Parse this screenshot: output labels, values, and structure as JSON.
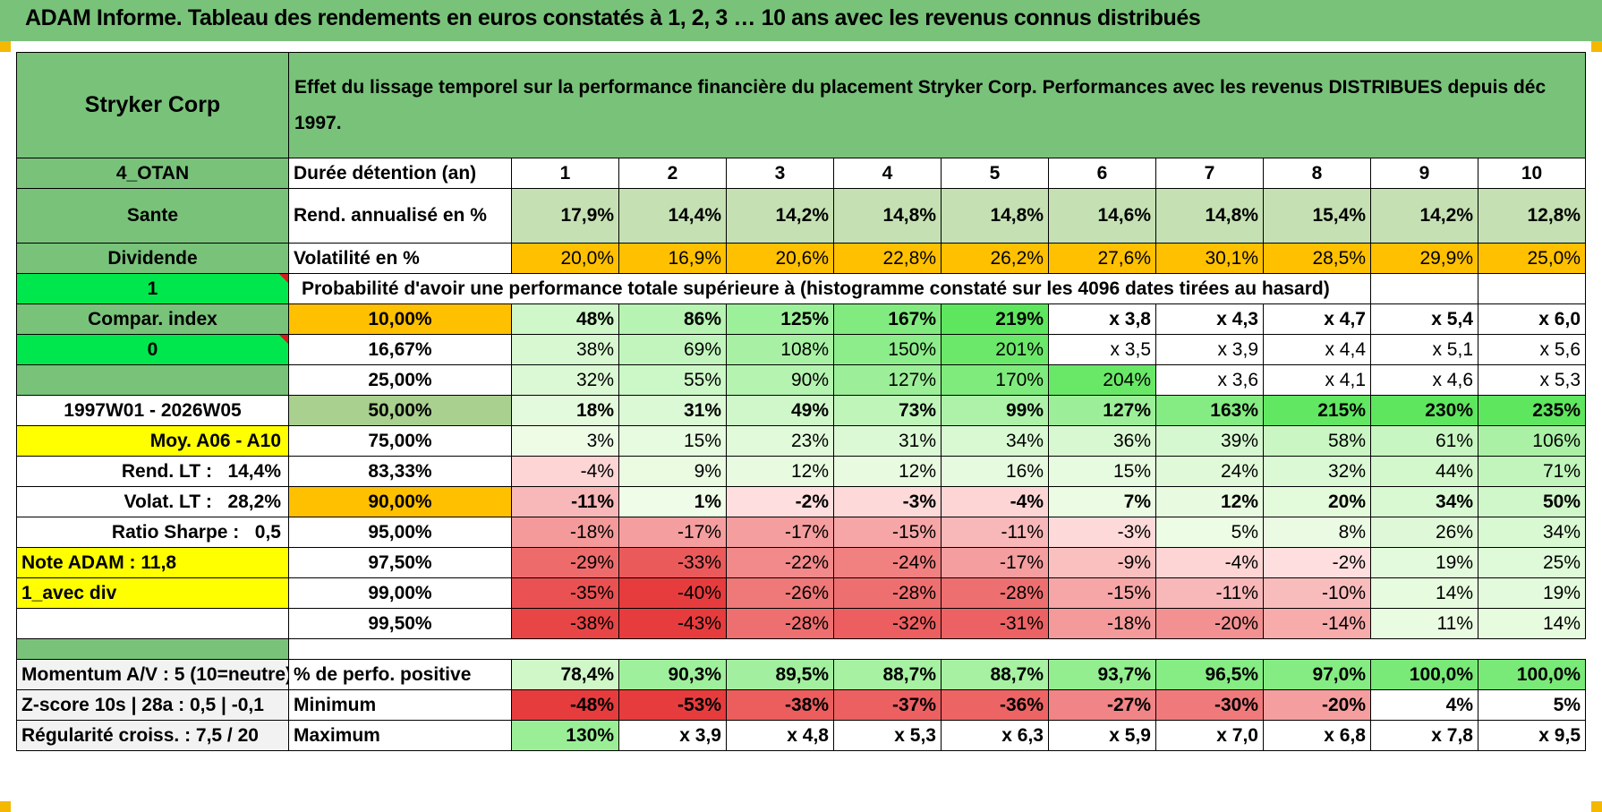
{
  "title": "ADAM Informe. Tableau des rendements en euros constatés à 1, 2, 3 … 10 ans avec les revenus connus distribués",
  "header": {
    "name": "Stryker Corp",
    "description": "Effet du lissage temporel sur la performance financière du placement Stryker Corp. Performances avec les revenus DISTRIBUES depuis déc 1997."
  },
  "left": {
    "code": "4_OTAN",
    "sector": "Sante",
    "type": "Dividende",
    "flag1": "1",
    "compar": "Compar. index",
    "flag0": "0",
    "period": "1997W01 - 2026W05",
    "moy": "Moy. A06 - A10",
    "rend_lt_label": "Rend. LT :",
    "rend_lt_value": "14,4%",
    "volat_lt_label": "Volat. LT :",
    "volat_lt_value": "28,2%",
    "sharpe_label": "Ratio Sharpe :",
    "sharpe_value": "0,5",
    "note": "Note ADAM : 11,8",
    "avec_div": "1_avec div",
    "momentum": "Momentum A/V : 5 (10=neutre)",
    "zscore": "Z-score 10s | 28a : 0,5 | -0,1",
    "regularite": "Régularité croiss. : 7,5 / 20"
  },
  "rows": {
    "duree_label": "Durée détention (an)",
    "years": [
      "1",
      "2",
      "3",
      "4",
      "5",
      "6",
      "7",
      "8",
      "9",
      "10"
    ],
    "rend_label": "Rend. annualisé en %",
    "rend": [
      "17,9%",
      "14,4%",
      "14,2%",
      "14,8%",
      "14,8%",
      "14,6%",
      "14,8%",
      "15,4%",
      "14,2%",
      "12,8%"
    ],
    "vol_label": "Volatilité en %",
    "vol": [
      "20,0%",
      "16,9%",
      "20,6%",
      "22,8%",
      "26,2%",
      "27,6%",
      "30,1%",
      "28,5%",
      "29,9%",
      "25,0%"
    ],
    "proba_label": "Probabilité d'avoir une performance totale supérieure à (histogramme constaté sur les 4096 dates tirées au hasard)",
    "perf_label": "% de perfo. positive",
    "perf": [
      "78,4%",
      "90,3%",
      "89,5%",
      "88,7%",
      "88,7%",
      "93,7%",
      "96,5%",
      "97,0%",
      "100,0%",
      "100,0%"
    ],
    "min_label": "Minimum",
    "min": [
      "-48%",
      "-53%",
      "-38%",
      "-37%",
      "-36%",
      "-27%",
      "-30%",
      "-20%",
      "4%",
      "5%"
    ],
    "max_label": "Maximum",
    "max": [
      "130%",
      "x 3,9",
      "x 4,8",
      "x 5,3",
      "x 6,3",
      "x 5,9",
      "x 7,0",
      "x 6,8",
      "x 7,8",
      "x 9,5"
    ]
  },
  "probs": [
    {
      "p": "10,00%",
      "v": [
        "48%",
        "86%",
        "125%",
        "167%",
        "219%",
        "x 3,8",
        "x 4,3",
        "x 4,7",
        "x 5,4",
        "x 6,0"
      ]
    },
    {
      "p": "16,67%",
      "v": [
        "38%",
        "69%",
        "108%",
        "150%",
        "201%",
        "x 3,5",
        "x 3,9",
        "x 4,4",
        "x 5,1",
        "x 5,6"
      ]
    },
    {
      "p": "25,00%",
      "v": [
        "32%",
        "55%",
        "90%",
        "127%",
        "170%",
        "204%",
        "x 3,6",
        "x 4,1",
        "x 4,6",
        "x 5,3"
      ]
    },
    {
      "p": "50,00%",
      "v": [
        "18%",
        "31%",
        "49%",
        "73%",
        "99%",
        "127%",
        "163%",
        "215%",
        "230%",
        "235%"
      ]
    },
    {
      "p": "75,00%",
      "v": [
        "3%",
        "15%",
        "23%",
        "31%",
        "34%",
        "36%",
        "39%",
        "58%",
        "61%",
        "106%"
      ]
    },
    {
      "p": "83,33%",
      "v": [
        "-4%",
        "9%",
        "12%",
        "12%",
        "16%",
        "15%",
        "24%",
        "32%",
        "44%",
        "71%"
      ]
    },
    {
      "p": "90,00%",
      "v": [
        "-11%",
        "1%",
        "-2%",
        "-3%",
        "-4%",
        "7%",
        "12%",
        "20%",
        "34%",
        "50%"
      ]
    },
    {
      "p": "95,00%",
      "v": [
        "-18%",
        "-17%",
        "-17%",
        "-15%",
        "-11%",
        "-3%",
        "5%",
        "8%",
        "26%",
        "34%"
      ]
    },
    {
      "p": "97,50%",
      "v": [
        "-29%",
        "-33%",
        "-22%",
        "-24%",
        "-17%",
        "-9%",
        "-4%",
        "-2%",
        "19%",
        "25%"
      ]
    },
    {
      "p": "99,00%",
      "v": [
        "-35%",
        "-40%",
        "-26%",
        "-28%",
        "-28%",
        "-15%",
        "-11%",
        "-10%",
        "14%",
        "19%"
      ]
    },
    {
      "p": "99,50%",
      "v": [
        "-38%",
        "-43%",
        "-28%",
        "-32%",
        "-31%",
        "-18%",
        "-20%",
        "-14%",
        "11%",
        "14%"
      ]
    }
  ],
  "colors": {
    "header_green": "#79c27a",
    "lime": "#00e64d",
    "orange": "#ffc000",
    "yellow": "#ffff00",
    "label_red": "#d71920"
  }
}
